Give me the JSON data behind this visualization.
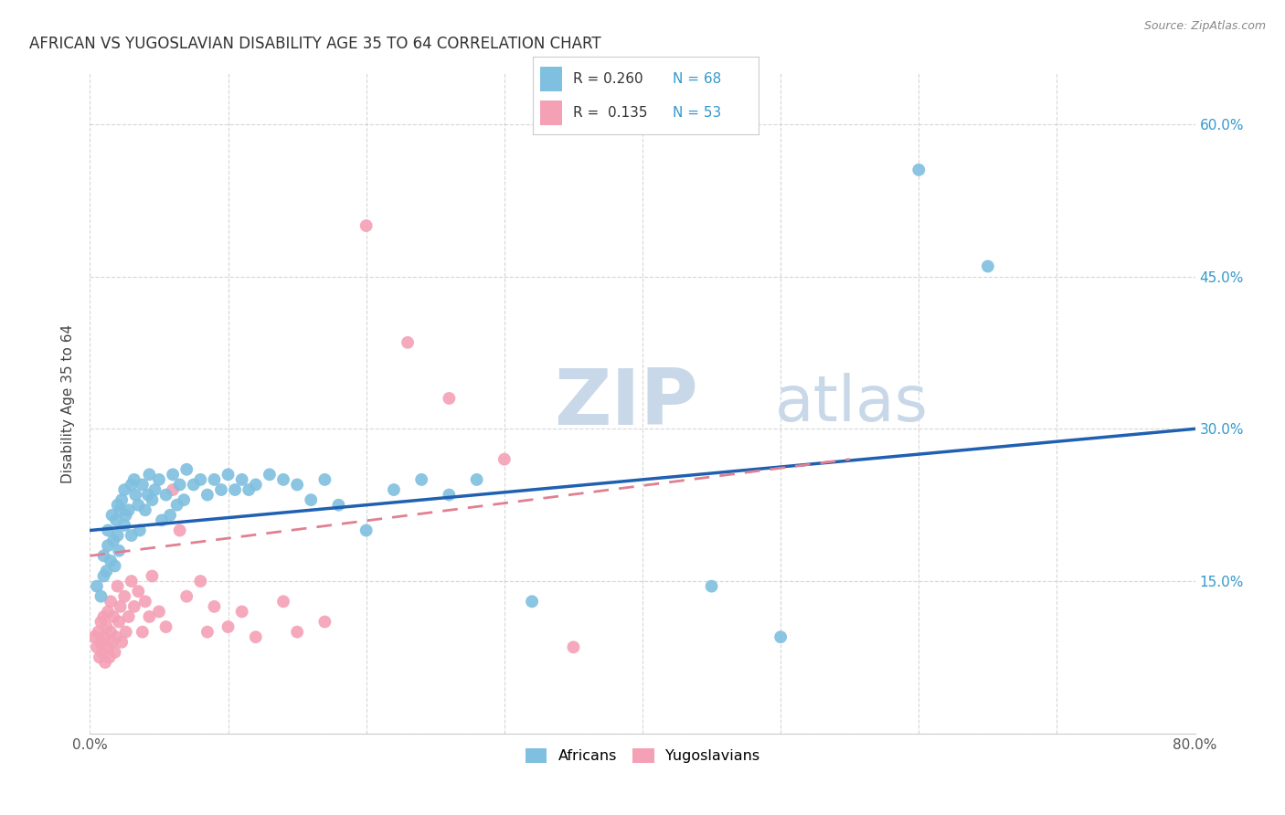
{
  "title": "AFRICAN VS YUGOSLAVIAN DISABILITY AGE 35 TO 64 CORRELATION CHART",
  "source": "Source: ZipAtlas.com",
  "ylabel": "Disability Age 35 to 64",
  "xlim": [
    0.0,
    0.8
  ],
  "ylim": [
    0.0,
    0.65
  ],
  "african_line_start_y": 0.2,
  "african_line_end_y": 0.3,
  "yugoslav_line_start_y": 0.175,
  "yugoslav_line_end_y": 0.27,
  "african_color": "#7fbfdf",
  "yugoslavian_color": "#f4a0b5",
  "african_line_color": "#2060b0",
  "yugoslavian_line_color": "#e08090",
  "watermark_color": "#c8d8e8",
  "africans_x": [
    0.005,
    0.008,
    0.01,
    0.01,
    0.012,
    0.013,
    0.013,
    0.015,
    0.016,
    0.017,
    0.018,
    0.019,
    0.02,
    0.02,
    0.021,
    0.022,
    0.023,
    0.025,
    0.025,
    0.026,
    0.028,
    0.03,
    0.03,
    0.032,
    0.033,
    0.035,
    0.036,
    0.038,
    0.04,
    0.042,
    0.043,
    0.045,
    0.047,
    0.05,
    0.052,
    0.055,
    0.058,
    0.06,
    0.063,
    0.065,
    0.068,
    0.07,
    0.075,
    0.08,
    0.085,
    0.09,
    0.095,
    0.1,
    0.105,
    0.11,
    0.115,
    0.12,
    0.13,
    0.14,
    0.15,
    0.16,
    0.17,
    0.18,
    0.2,
    0.22,
    0.24,
    0.26,
    0.28,
    0.32,
    0.45,
    0.5,
    0.6,
    0.65
  ],
  "africans_y": [
    0.145,
    0.135,
    0.155,
    0.175,
    0.16,
    0.2,
    0.185,
    0.17,
    0.215,
    0.19,
    0.165,
    0.21,
    0.195,
    0.225,
    0.18,
    0.22,
    0.23,
    0.205,
    0.24,
    0.215,
    0.22,
    0.195,
    0.245,
    0.25,
    0.235,
    0.225,
    0.2,
    0.245,
    0.22,
    0.235,
    0.255,
    0.23,
    0.24,
    0.25,
    0.21,
    0.235,
    0.215,
    0.255,
    0.225,
    0.245,
    0.23,
    0.26,
    0.245,
    0.25,
    0.235,
    0.25,
    0.24,
    0.255,
    0.24,
    0.25,
    0.24,
    0.245,
    0.255,
    0.25,
    0.245,
    0.23,
    0.25,
    0.225,
    0.2,
    0.24,
    0.25,
    0.235,
    0.25,
    0.13,
    0.145,
    0.095,
    0.555,
    0.46
  ],
  "yugoslavians_x": [
    0.003,
    0.005,
    0.006,
    0.007,
    0.008,
    0.008,
    0.009,
    0.01,
    0.01,
    0.011,
    0.012,
    0.013,
    0.013,
    0.014,
    0.015,
    0.015,
    0.016,
    0.017,
    0.018,
    0.019,
    0.02,
    0.021,
    0.022,
    0.023,
    0.025,
    0.026,
    0.028,
    0.03,
    0.032,
    0.035,
    0.038,
    0.04,
    0.043,
    0.045,
    0.05,
    0.055,
    0.06,
    0.065,
    0.07,
    0.08,
    0.085,
    0.09,
    0.1,
    0.11,
    0.12,
    0.14,
    0.15,
    0.17,
    0.2,
    0.23,
    0.26,
    0.3,
    0.35
  ],
  "yugoslavians_y": [
    0.095,
    0.085,
    0.1,
    0.075,
    0.09,
    0.11,
    0.08,
    0.095,
    0.115,
    0.07,
    0.105,
    0.085,
    0.12,
    0.075,
    0.1,
    0.13,
    0.09,
    0.115,
    0.08,
    0.095,
    0.145,
    0.11,
    0.125,
    0.09,
    0.135,
    0.1,
    0.115,
    0.15,
    0.125,
    0.14,
    0.1,
    0.13,
    0.115,
    0.155,
    0.12,
    0.105,
    0.24,
    0.2,
    0.135,
    0.15,
    0.1,
    0.125,
    0.105,
    0.12,
    0.095,
    0.13,
    0.1,
    0.11,
    0.5,
    0.385,
    0.33,
    0.27,
    0.085
  ]
}
